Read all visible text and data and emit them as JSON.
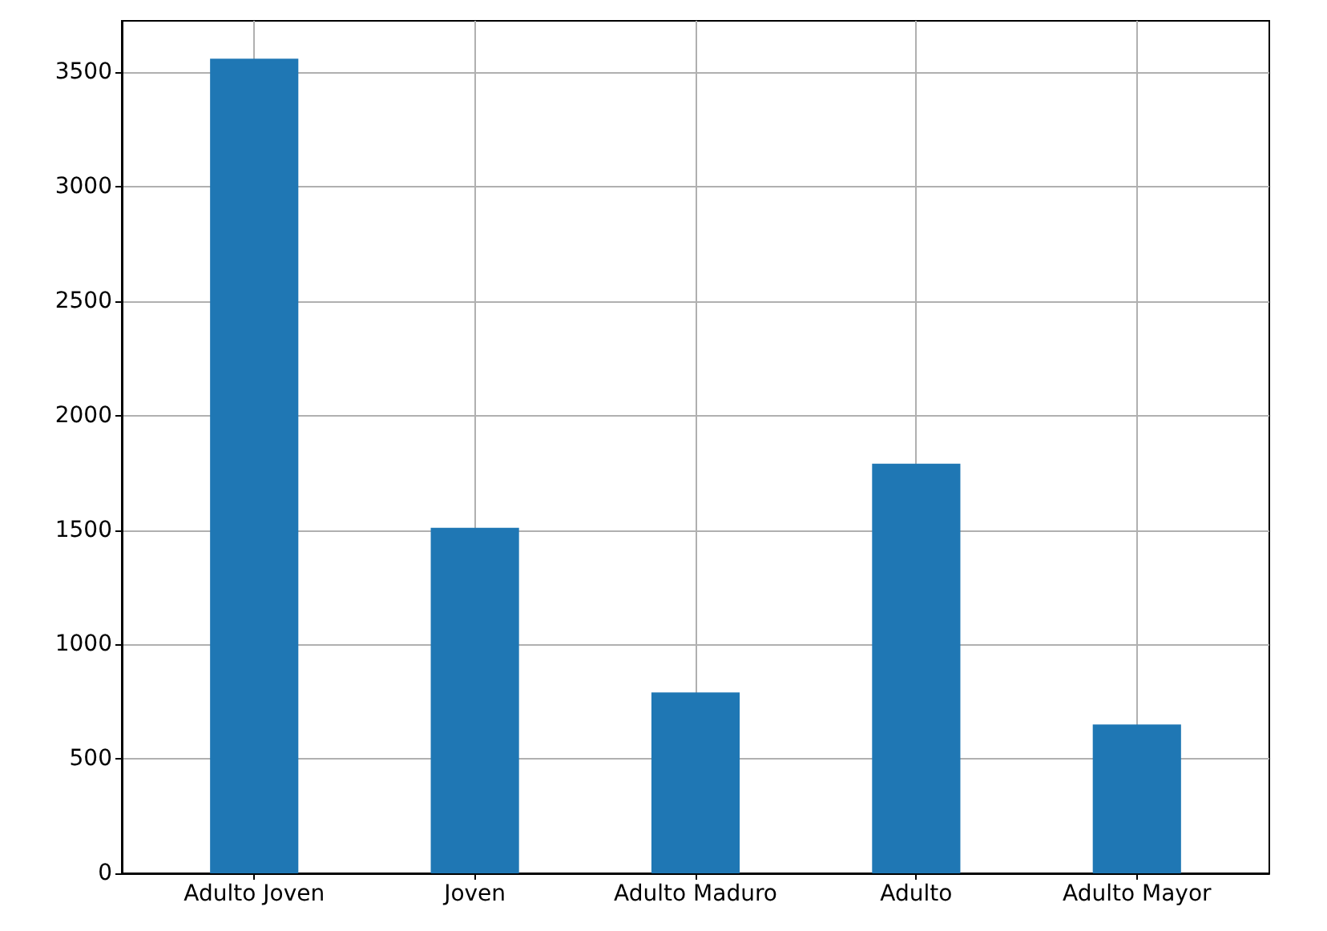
{
  "chart_data": {
    "type": "bar",
    "color": "#1f77b4",
    "categories": [
      "Adulto Joven",
      "Joven",
      "Adulto Maduro",
      "Adulto",
      "Adulto Mayor"
    ],
    "values": [
      3560,
      1510,
      790,
      1790,
      650
    ],
    "ylim": [
      0,
      3725
    ],
    "yticks": [
      0,
      500,
      1000,
      1500,
      2000,
      2500,
      3000,
      3500
    ],
    "grid": true
  }
}
